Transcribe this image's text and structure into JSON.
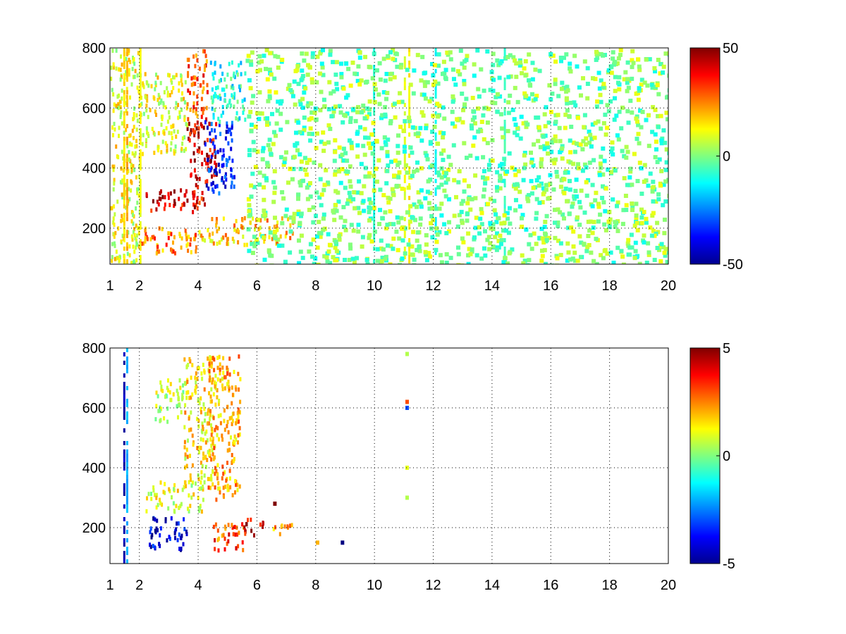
{
  "chart_data": [
    {
      "type": "heatmap",
      "title": "",
      "xlabel": "",
      "ylabel": "",
      "xlim": [
        1,
        20
      ],
      "ylim": [
        80,
        800
      ],
      "x_ticks": [
        1,
        2,
        4,
        6,
        8,
        10,
        12,
        14,
        16,
        18,
        20
      ],
      "x_tick_labels": [
        "1",
        "2",
        "4",
        "6",
        "8",
        "10",
        "12",
        "14",
        "16",
        "18",
        "20"
      ],
      "y_ticks": [
        200,
        400,
        600,
        800
      ],
      "y_tick_labels": [
        "200",
        "400",
        "600",
        "800"
      ],
      "grid": true,
      "colormap": "jet",
      "colorbar": {
        "range": [
          -50,
          50
        ],
        "ticks": [
          -50,
          0,
          50
        ],
        "tick_labels": [
          "-50",
          "0",
          "50"
        ]
      },
      "features": [
        {
          "x": [
            2.2,
            4.2
          ],
          "y": [
            260,
            340
          ],
          "value": 40
        },
        {
          "x": [
            3.6,
            4.6
          ],
          "y": [
            340,
            560
          ],
          "value": 40
        },
        {
          "x": [
            3.6,
            4.3
          ],
          "y": [
            560,
            800
          ],
          "value": 30
        },
        {
          "x": [
            4.2,
            5.2
          ],
          "y": [
            320,
            560
          ],
          "value": -35
        },
        {
          "x": [
            4.4,
            5.6
          ],
          "y": [
            560,
            760
          ],
          "value": -10
        },
        {
          "x": [
            2.0,
            4.0
          ],
          "y": [
            120,
            210
          ],
          "value": 25
        },
        {
          "x": [
            4.0,
            7.2
          ],
          "y": [
            150,
            240
          ],
          "value": 18
        },
        {
          "x": [
            2.0,
            3.6
          ],
          "y": [
            450,
            720
          ],
          "value": 10
        },
        {
          "x": [
            1.0,
            2.0
          ],
          "y": [
            80,
            800
          ],
          "value": 10
        }
      ],
      "vertical_streaks": [
        {
          "x": 1.45,
          "value": 15
        },
        {
          "x": 1.55,
          "value": 20
        },
        {
          "x": 2.0,
          "value": 12
        },
        {
          "x": 9.95,
          "value": -8
        },
        {
          "x": 11.0,
          "value": 10
        },
        {
          "x": 11.15,
          "value": 14
        },
        {
          "x": 12.05,
          "value": -12
        },
        {
          "x": 14.4,
          "value": -6
        }
      ]
    },
    {
      "type": "heatmap",
      "title": "",
      "xlabel": "",
      "ylabel": "",
      "xlim": [
        1,
        20
      ],
      "ylim": [
        80,
        800
      ],
      "x_ticks": [
        1,
        2,
        4,
        6,
        8,
        10,
        12,
        14,
        16,
        18,
        20
      ],
      "x_tick_labels": [
        "1",
        "2",
        "4",
        "6",
        "8",
        "10",
        "12",
        "14",
        "16",
        "18",
        "20"
      ],
      "y_ticks": [
        200,
        400,
        600,
        800
      ],
      "y_tick_labels": [
        "200",
        "400",
        "600",
        "800"
      ],
      "grid": true,
      "colormap": "jet",
      "colorbar": {
        "range": [
          -5,
          5
        ],
        "ticks": [
          -5,
          0,
          5
        ],
        "tick_labels": [
          "-5",
          "0",
          "5"
        ]
      },
      "features": [
        {
          "x": [
            2.3,
            3.6
          ],
          "y": [
            130,
            240
          ],
          "value": -4
        },
        {
          "x": [
            4.5,
            5.6
          ],
          "y": [
            130,
            220
          ],
          "value": 3
        },
        {
          "x": [
            5.4,
            6.2
          ],
          "y": [
            180,
            240
          ],
          "value": 4
        },
        {
          "x": [
            6.4,
            7.2
          ],
          "y": [
            180,
            220
          ],
          "value": 2
        },
        {
          "x": [
            2.2,
            4.2
          ],
          "y": [
            260,
            360
          ],
          "value": 1
        },
        {
          "x": [
            3.5,
            4.5
          ],
          "y": [
            360,
            780
          ],
          "value": 1.5
        },
        {
          "x": [
            4.3,
            5.4
          ],
          "y": [
            300,
            780
          ],
          "value": 2
        },
        {
          "x": [
            2.5,
            3.6
          ],
          "y": [
            560,
            700
          ],
          "value": 0.5
        }
      ],
      "vertical_streaks": [
        {
          "x": 1.45,
          "value": -4.5
        },
        {
          "x": 1.55,
          "value": -2
        }
      ],
      "points": [
        {
          "x": 11.1,
          "y": 600,
          "value": -3
        },
        {
          "x": 11.1,
          "y": 620,
          "value": 3
        },
        {
          "x": 11.1,
          "y": 400,
          "value": 1
        },
        {
          "x": 11.1,
          "y": 300,
          "value": 0.5
        },
        {
          "x": 11.1,
          "y": 780,
          "value": 0.5
        },
        {
          "x": 8.9,
          "y": 150,
          "value": -5
        },
        {
          "x": 8.05,
          "y": 150,
          "value": 2
        },
        {
          "x": 6.6,
          "y": 280,
          "value": 5
        }
      ]
    }
  ]
}
